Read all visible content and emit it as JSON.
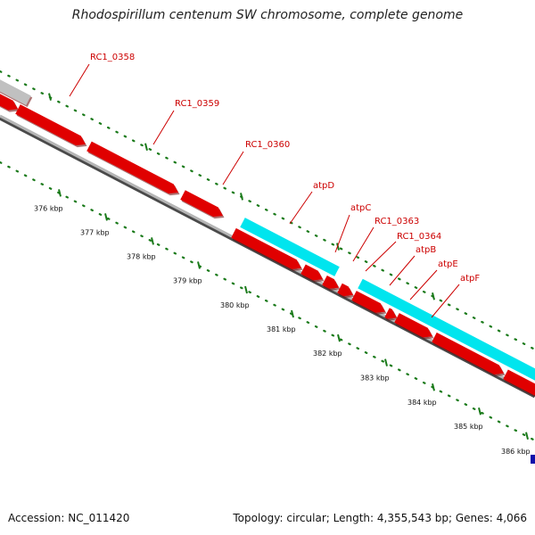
{
  "title": "Rhodospirillum centenum SW chromosome, complete genome",
  "footer": {
    "accession": "Accession: NC_011420",
    "topology": "Topology: circular; Length: 4,355,543 bp; Genes: 4,066"
  },
  "colors": {
    "gene_forward": "#e00000",
    "gene_highlight": "#00e5ee",
    "gene_other": "#c0c0c0",
    "backbone": "#8c8c8c",
    "tick": "#1a7a1a",
    "label": "#cc0000",
    "marker": "#1010aa"
  },
  "chart_data": {
    "type": "genome-map",
    "unit": "kbp",
    "ticks": [
      {
        "kbp": 376,
        "label": "376 kbp"
      },
      {
        "kbp": 377,
        "label": "377 kbp"
      },
      {
        "kbp": 378,
        "label": "378 kbp"
      },
      {
        "kbp": 379,
        "label": "379 kbp"
      },
      {
        "kbp": 380,
        "label": "380 kbp"
      },
      {
        "kbp": 381,
        "label": "381 kbp"
      },
      {
        "kbp": 382,
        "label": "382 kbp"
      },
      {
        "kbp": 383,
        "label": "383 kbp"
      },
      {
        "kbp": 384,
        "label": "384 kbp"
      },
      {
        "kbp": 385,
        "label": "385 kbp"
      },
      {
        "kbp": 386,
        "label": "386 kbp"
      }
    ],
    "gene_labels": [
      "RC1_0358",
      "RC1_0359",
      "RC1_0360",
      "atpD",
      "atpC",
      "RC1_0363",
      "RC1_0364",
      "atpB",
      "atpE",
      "atpF"
    ]
  }
}
